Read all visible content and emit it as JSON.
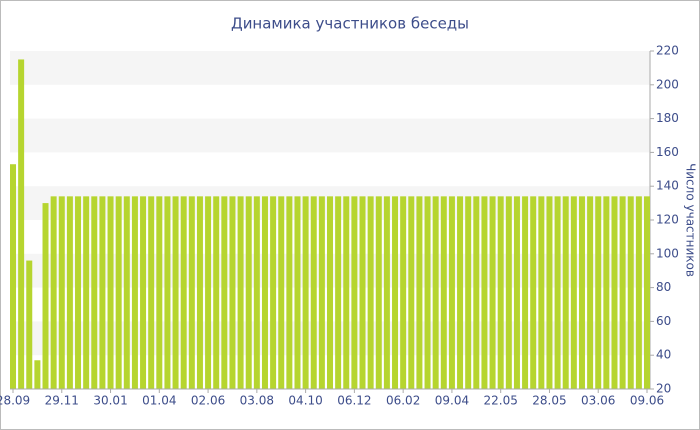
{
  "chart_data": {
    "type": "bar",
    "title": "Динамика участников беседы",
    "y_axis_label": "Число участников",
    "categories": [
      "28.09",
      null,
      null,
      null,
      null,
      null,
      "29.11",
      null,
      null,
      null,
      null,
      null,
      "30.01",
      null,
      null,
      null,
      null,
      null,
      "01.04",
      null,
      null,
      null,
      null,
      null,
      "02.06",
      null,
      null,
      null,
      null,
      null,
      "03.08",
      null,
      null,
      null,
      null,
      null,
      "04.10",
      null,
      null,
      null,
      null,
      null,
      "06.12",
      null,
      null,
      null,
      null,
      null,
      "06.02",
      null,
      null,
      null,
      null,
      null,
      "09.04",
      null,
      null,
      null,
      null,
      null,
      "22.05",
      null,
      null,
      null,
      null,
      null,
      "28.05",
      null,
      null,
      null,
      null,
      null,
      "03.06",
      null,
      null,
      null,
      null,
      null,
      "09.06"
    ],
    "values": [
      153,
      215,
      96,
      37,
      130,
      134,
      134,
      134,
      134,
      134,
      134,
      134,
      134,
      134,
      134,
      134,
      134,
      134,
      134,
      134,
      134,
      134,
      134,
      134,
      134,
      134,
      134,
      134,
      134,
      134,
      134,
      134,
      134,
      134,
      134,
      134,
      134,
      134,
      134,
      134,
      134,
      134,
      134,
      134,
      134,
      134,
      134,
      134,
      134,
      134,
      134,
      134,
      134,
      134,
      134,
      134,
      134,
      134,
      134,
      134,
      134,
      134,
      134,
      134,
      134,
      134,
      134,
      134,
      134,
      134,
      134,
      134,
      134,
      134,
      134,
      134,
      134,
      134,
      134
    ],
    "color": "#b6d52f",
    "ylim": [
      20,
      220
    ],
    "yticks": [
      20,
      40,
      60,
      80,
      100,
      120,
      140,
      160,
      180,
      200,
      220
    ],
    "grid": "bands",
    "y_axis_side": "right"
  }
}
